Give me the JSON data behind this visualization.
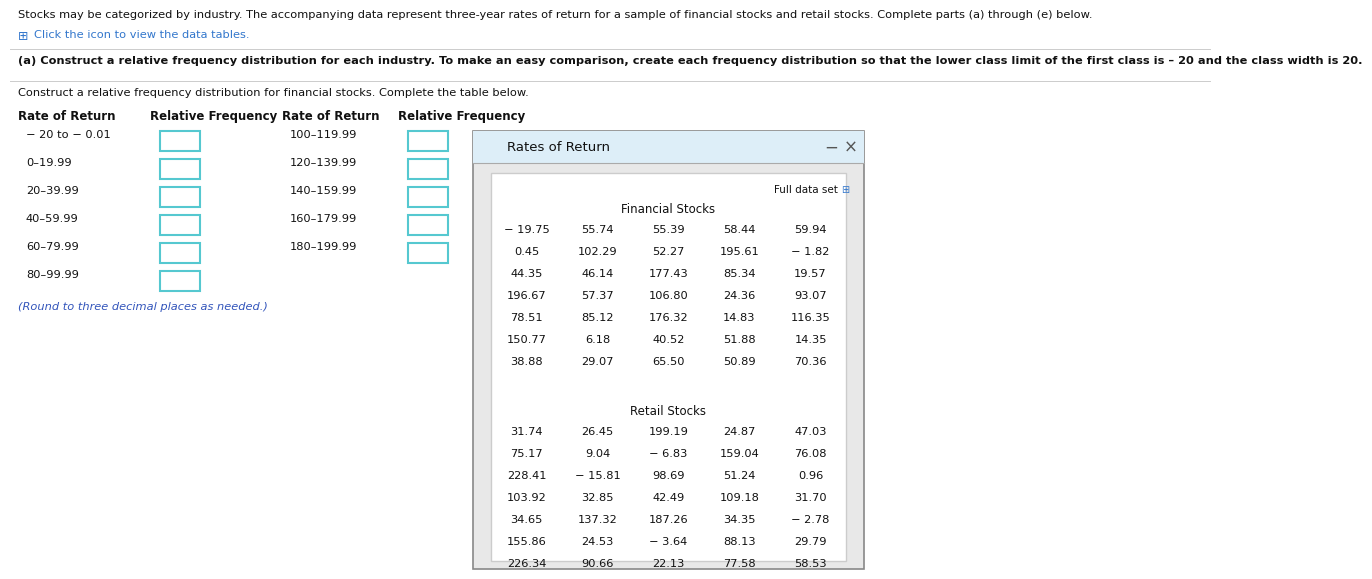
{
  "header_text": "Stocks may be categorized by industry. The accompanying data represent three-year rates of return for a sample of financial stocks and retail stocks. Complete parts (a) through (e) below.",
  "subheader_icon": "⊞",
  "subheader_text": "Click the icon to view the data tables.",
  "part_a_text": "(a) Construct a relative frequency distribution for each industry. To make an easy comparison, create each frequency distribution so that the lower class limit of the first class is – 20 and the class width is 20.",
  "construct_text": "Construct a relative frequency distribution for financial stocks. Complete the table below.",
  "col1_header": "Rate of Return",
  "col2_header": "Relative Frequency",
  "col3_header": "Rate of Return",
  "col4_header": "Relative Frequency",
  "left_rates": [
    "− 20 to − 0.01",
    "0–19.99",
    "20–39.99",
    "40–59.99",
    "60–79.99",
    "80–99.99"
  ],
  "right_rates": [
    "100–119.99",
    "120–139.99",
    "140–159.99",
    "160–179.99",
    "180–199.99"
  ],
  "round_note": "(Round to three decimal places as needed.)",
  "popup_title": "Rates of Return",
  "popup_full_data": "Full data set",
  "financial_label": "Financial Stocks",
  "financial_data": [
    [
      "− 19.75",
      "55.74",
      "55.39",
      "58.44",
      "59.94"
    ],
    [
      "0.45",
      "102.29",
      "52.27",
      "195.61",
      "− 1.82"
    ],
    [
      "44.35",
      "46.14",
      "177.43",
      "85.34",
      "19.57"
    ],
    [
      "196.67",
      "57.37",
      "106.80",
      "24.36",
      "93.07"
    ],
    [
      "78.51",
      "85.12",
      "176.32",
      "14.83",
      "116.35"
    ],
    [
      "150.77",
      "6.18",
      "40.52",
      "51.88",
      "14.35"
    ],
    [
      "38.88",
      "29.07",
      "65.50",
      "50.89",
      "70.36"
    ]
  ],
  "retail_label": "Retail Stocks",
  "retail_data": [
    [
      "31.74",
      "26.45",
      "199.19",
      "24.87",
      "47.03"
    ],
    [
      "75.17",
      "9.04",
      "− 6.83",
      "159.04",
      "76.08"
    ],
    [
      "228.41",
      "− 15.81",
      "98.69",
      "51.24",
      "0.96"
    ],
    [
      "103.92",
      "32.85",
      "42.49",
      "109.18",
      "31.70"
    ],
    [
      "34.65",
      "137.32",
      "187.26",
      "34.35",
      "− 2.78"
    ],
    [
      "155.86",
      "24.53",
      "− 3.64",
      "88.13",
      "29.79"
    ],
    [
      "226.34",
      "90.66",
      "22.13",
      "77.58",
      "58.53"
    ]
  ],
  "bg_color": "#ffffff",
  "box_border_color": "#55c8d0",
  "popup_outer_bg": "#e8e8e8",
  "popup_title_bar_bg": "#ddeeff",
  "popup_inner_bg": "#ffffff",
  "popup_border_color": "#999999",
  "inner_border_color": "#cccccc",
  "text_color": "#111111",
  "blue_text": "#3355bb",
  "icon_color": "#3377cc"
}
